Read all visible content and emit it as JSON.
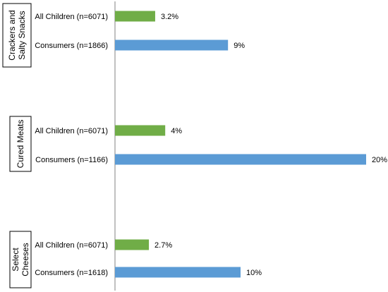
{
  "chart_data": {
    "type": "bar",
    "orientation": "horizontal",
    "value_unit": "%",
    "grid": false,
    "legend": "none",
    "xlim": [
      0,
      20
    ],
    "colors": {
      "all_children": "#70AD47",
      "consumers": "#5B9BD5"
    },
    "groups": [
      {
        "label_lines": [
          "Crackers and",
          "Salty Snacks"
        ],
        "bars": [
          {
            "category": "All Children (n=6071)",
            "value": 3.2,
            "value_label": "3.2%",
            "series": "all_children"
          },
          {
            "category": "Consumers (n=1866)",
            "value": 9,
            "value_label": "9%",
            "series": "consumers"
          }
        ]
      },
      {
        "label_lines": [
          "Cured Meats"
        ],
        "bars": [
          {
            "category": "All Children (n=6071)",
            "value": 4,
            "value_label": "4%",
            "series": "all_children"
          },
          {
            "category": "Consumers (n=1166)",
            "value": 20,
            "value_label": "20%",
            "series": "consumers"
          }
        ]
      },
      {
        "label_lines": [
          "Select",
          "Cheeses"
        ],
        "bars": [
          {
            "category": "All Children (n=6071)",
            "value": 2.7,
            "value_label": "2.7%",
            "series": "all_children"
          },
          {
            "category": "Consumers (n=1618)",
            "value": 10,
            "value_label": "10%",
            "series": "consumers"
          }
        ]
      }
    ]
  }
}
